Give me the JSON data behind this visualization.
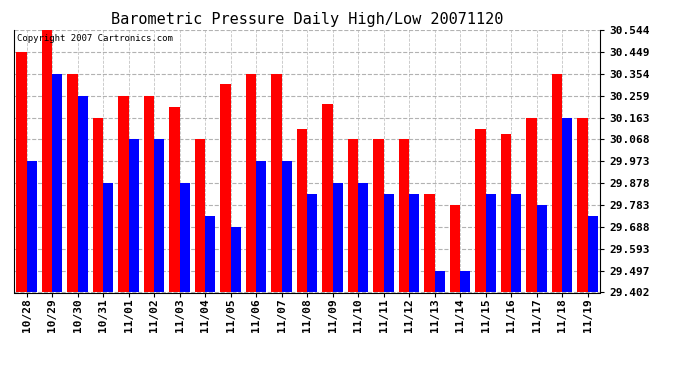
{
  "title": "Barometric Pressure Daily High/Low 20071120",
  "copyright": "Copyright 2007 Cartronics.com",
  "dates": [
    "10/28",
    "10/29",
    "10/30",
    "10/31",
    "11/01",
    "11/02",
    "11/03",
    "11/04",
    "11/05",
    "11/06",
    "11/07",
    "11/08",
    "11/09",
    "11/10",
    "11/11",
    "11/12",
    "11/13",
    "11/14",
    "11/15",
    "11/16",
    "11/17",
    "11/18",
    "11/19"
  ],
  "highs": [
    30.449,
    30.544,
    30.354,
    30.163,
    30.259,
    30.259,
    30.21,
    30.068,
    30.31,
    30.354,
    30.354,
    30.115,
    30.22,
    30.068,
    30.068,
    30.068,
    29.83,
    29.783,
    30.115,
    30.091,
    30.163,
    30.354,
    30.163
  ],
  "lows": [
    29.973,
    30.354,
    30.259,
    29.878,
    30.068,
    30.068,
    29.878,
    29.735,
    29.688,
    29.973,
    29.973,
    29.83,
    29.878,
    29.878,
    29.83,
    29.83,
    29.497,
    29.497,
    29.83,
    29.83,
    29.783,
    30.163,
    29.735
  ],
  "ymin": 29.402,
  "ymax": 30.544,
  "yticks": [
    30.544,
    30.449,
    30.354,
    30.259,
    30.163,
    30.068,
    29.973,
    29.878,
    29.783,
    29.688,
    29.593,
    29.497,
    29.402
  ],
  "high_color": "#FF0000",
  "low_color": "#0000FF",
  "bg_color": "#FFFFFF",
  "plot_bg_color": "#FFFFFF",
  "grid_color": "#AAAAAA",
  "title_fontsize": 11,
  "tick_fontsize": 8,
  "bar_width": 0.4
}
